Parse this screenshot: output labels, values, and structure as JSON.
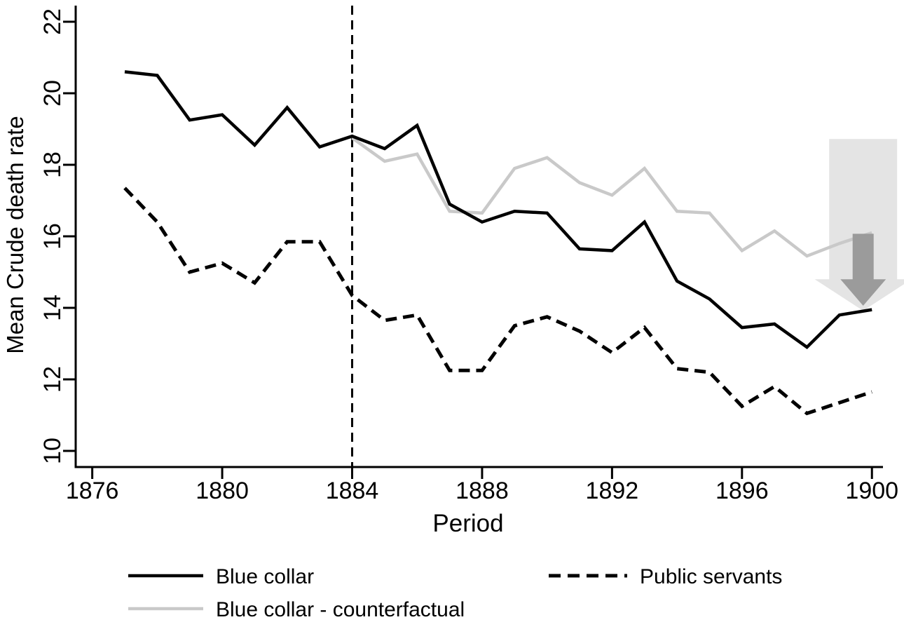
{
  "chart_data": {
    "type": "line",
    "title": "",
    "xlabel": "Period",
    "ylabel": "Mean Crude death rate",
    "x_ticks": [
      1876,
      1880,
      1884,
      1888,
      1892,
      1896,
      1900
    ],
    "y_ticks": [
      10,
      12,
      14,
      16,
      18,
      20,
      22
    ],
    "xlim": [
      1875.49,
      1900.34
    ],
    "ylim": [
      9.55,
      22.45
    ],
    "grid": false,
    "legend_position": "bottom",
    "reference_line_x": 1884,
    "series": [
      {
        "name": "Blue collar",
        "color": "#000000",
        "style": "solid",
        "x": [
          1877,
          1878,
          1879,
          1880,
          1881,
          1882,
          1883,
          1884,
          1885,
          1886,
          1887,
          1888,
          1889,
          1890,
          1891,
          1892,
          1893,
          1894,
          1895,
          1896,
          1897,
          1898,
          1899,
          1900
        ],
        "values": [
          20.6,
          20.5,
          19.25,
          19.4,
          18.55,
          19.6,
          18.5,
          18.8,
          18.45,
          19.1,
          16.9,
          16.4,
          16.7,
          16.65,
          15.65,
          15.6,
          16.4,
          14.75,
          14.25,
          13.45,
          13.55,
          12.9,
          13.8,
          13.95
        ]
      },
      {
        "name": "Blue collar - counterfactual",
        "color": "#c9c9c9",
        "style": "solid",
        "x": [
          1884,
          1885,
          1886,
          1887,
          1888,
          1889,
          1890,
          1891,
          1892,
          1893,
          1894,
          1895,
          1896,
          1897,
          1898,
          1899,
          1900
        ],
        "values": [
          18.75,
          18.1,
          18.3,
          16.7,
          16.65,
          17.9,
          18.2,
          17.5,
          17.15,
          17.9,
          16.7,
          16.65,
          15.6,
          16.15,
          15.45,
          15.8,
          16.1
        ]
      },
      {
        "name": "Public servants",
        "color": "#000000",
        "style": "dashed",
        "x": [
          1877,
          1878,
          1879,
          1880,
          1881,
          1882,
          1883,
          1884,
          1885,
          1886,
          1887,
          1888,
          1889,
          1890,
          1891,
          1892,
          1893,
          1894,
          1895,
          1896,
          1897,
          1898,
          1899,
          1900
        ],
        "values": [
          17.35,
          16.4,
          15.0,
          15.25,
          14.7,
          15.85,
          15.85,
          14.35,
          13.65,
          13.8,
          12.25,
          12.25,
          13.5,
          13.75,
          13.35,
          12.75,
          13.45,
          12.3,
          12.2,
          11.25,
          11.8,
          11.05,
          11.35,
          11.65
        ]
      }
    ],
    "annotation_arrows": {
      "outer": {
        "x_center": 1899.73,
        "body_top": 18.72,
        "head_top": 14.8,
        "tip": 13.92,
        "body_half_width": 1.046,
        "head_half_width": 1.49,
        "color": "#e4e4e4"
      },
      "inner": {
        "x_center": 1899.73,
        "body_top": 16.07,
        "head_top": 14.8,
        "tip": 14.06,
        "body_half_width": 0.324,
        "head_half_width": 0.7,
        "color": "#9b9b9b"
      }
    }
  }
}
